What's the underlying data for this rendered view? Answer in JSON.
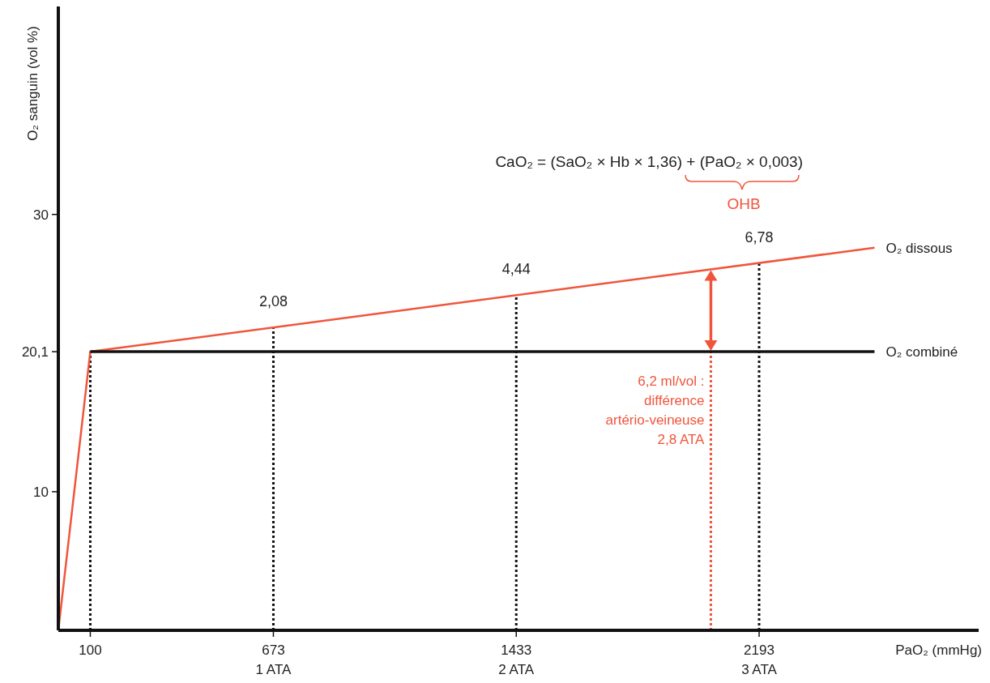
{
  "chart_data": {
    "type": "line",
    "xlabel": "PaO₂ (mmHg)",
    "ylabel": "O₂ sanguin (vol %)",
    "xlim": [
      0,
      2880
    ],
    "ylim": [
      0,
      45
    ],
    "xticks": [
      100,
      673,
      1433,
      2193
    ],
    "yticks": [
      10,
      {
        "value": 20.1,
        "label": "20,1"
      },
      30
    ],
    "series": [
      {
        "name": "O₂ dissous",
        "color": "#f0553c",
        "x": [
          0,
          100,
          2554
        ],
        "values": [
          0,
          20.1,
          27.6
        ]
      },
      {
        "name": "O₂ combiné",
        "color": "#111111",
        "x": [
          100,
          2554
        ],
        "values": [
          20.1,
          20.1
        ]
      }
    ],
    "ref_lines": [
      {
        "axis": "x",
        "value": 100,
        "color": "#111111",
        "line_style": "dotted"
      },
      {
        "axis": "x",
        "value": 673,
        "color": "#111111",
        "line_style": "dotted"
      },
      {
        "axis": "x",
        "value": 1433,
        "color": "#111111",
        "line_style": "dotted"
      },
      {
        "axis": "x",
        "value": 2193,
        "color": "#111111",
        "line_style": "dotted"
      },
      {
        "axis": "x",
        "value": 2042,
        "color": "#f0553c",
        "line_style": "dotted",
        "label": "6,2 ml/vol :\ndifférence\nartério-veineuse\n2,8 ATA"
      }
    ],
    "annotations": [
      "CaO₂ = (SaO₂ × Hb × 1,36) + (PaO₂ × 0,003)",
      "OHB",
      "2,08",
      "4,44",
      "6,78",
      "1 ATA",
      "2 ATA",
      "3 ATA"
    ],
    "legend": false
  }
}
